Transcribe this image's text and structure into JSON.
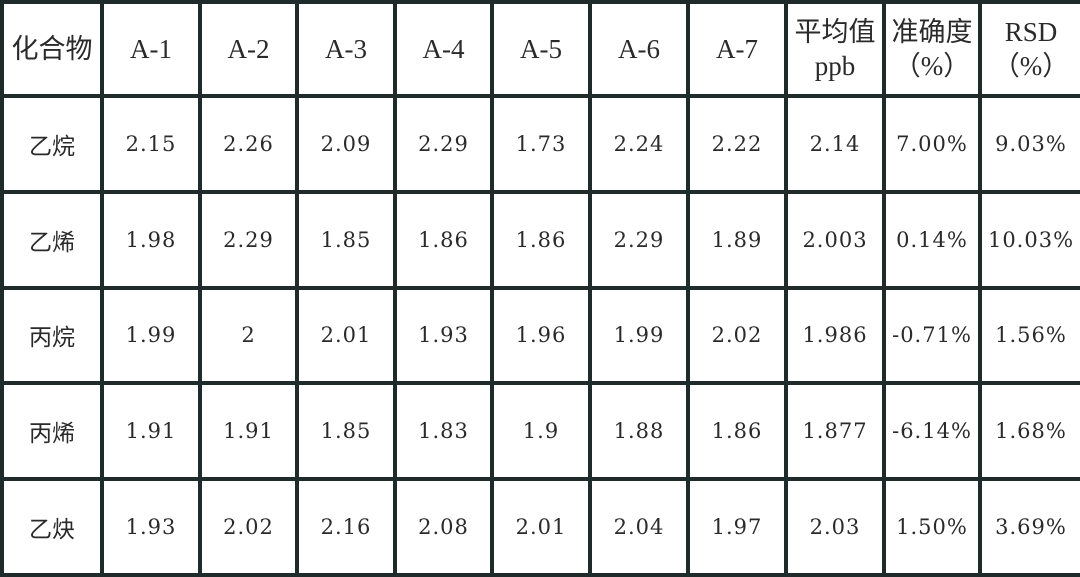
{
  "table": {
    "header": [
      [
        "化合物"
      ],
      [
        "A-1"
      ],
      [
        "A-2"
      ],
      [
        "A-3"
      ],
      [
        "A-4"
      ],
      [
        "A-5"
      ],
      [
        "A-6"
      ],
      [
        "A-7"
      ],
      [
        "平均值",
        "ppb"
      ],
      [
        "准确度",
        "（%）"
      ],
      [
        "RSD",
        "（%）"
      ]
    ],
    "rows": [
      [
        "乙烷",
        "2.15",
        "2.26",
        "2.09",
        "2.29",
        "1.73",
        "2.24",
        "2.22",
        "2.14",
        "7.00%",
        "9.03%"
      ],
      [
        "乙烯",
        "1.98",
        "2.29",
        "1.85",
        "1.86",
        "1.86",
        "2.29",
        "1.89",
        "2.003",
        "0.14%",
        "10.03%"
      ],
      [
        "丙烷",
        "1.99",
        "2",
        "2.01",
        "1.93",
        "1.96",
        "1.99",
        "2.02",
        "1.986",
        "-0.71%",
        "1.56%"
      ],
      [
        "丙烯",
        "1.91",
        "1.91",
        "1.85",
        "1.83",
        "1.9",
        "1.88",
        "1.86",
        "1.877",
        "-6.14%",
        "1.68%"
      ],
      [
        "乙炔",
        "1.93",
        "2.02",
        "2.16",
        "2.08",
        "2.01",
        "2.04",
        "1.97",
        "2.03",
        "1.50%",
        "3.69%"
      ]
    ]
  }
}
